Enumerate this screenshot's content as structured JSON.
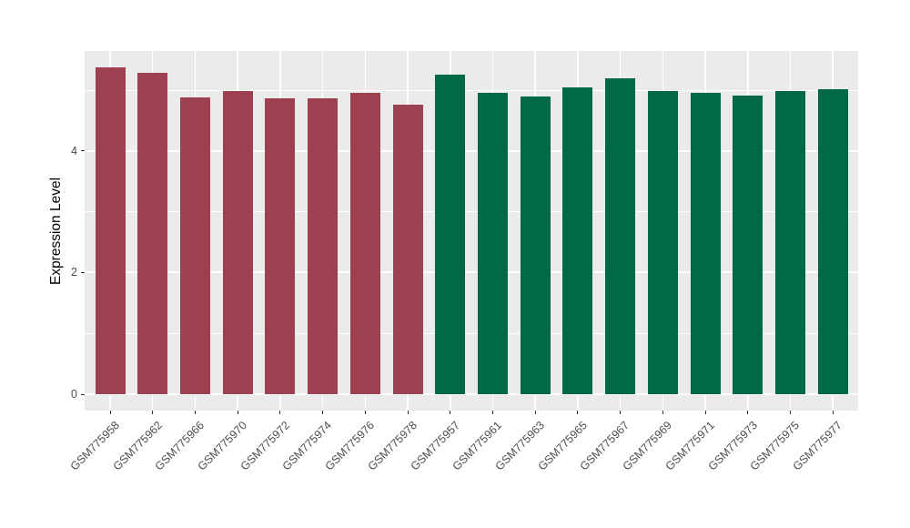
{
  "chart_data": {
    "type": "bar",
    "title": "",
    "xlabel": "",
    "ylabel": "Expression Level",
    "ylim": [
      0,
      5.65
    ],
    "yticks": [
      0,
      2,
      4
    ],
    "yticks_minor": [
      1,
      3,
      5
    ],
    "grid": "on",
    "legend": "none",
    "panel_bg": "#EBEBEB",
    "grid_color": "#FFFFFF",
    "tick_color": "#333333",
    "tick_label_color": "#4D4D4D",
    "group_colors": {
      "left_group": "#9D4050",
      "right_group": "#016848"
    },
    "categories": [
      "GSM775958",
      "GSM775962",
      "GSM775966",
      "GSM775970",
      "GSM775972",
      "GSM775974",
      "GSM775976",
      "GSM775978",
      "GSM775957",
      "GSM775961",
      "GSM775963",
      "GSM775965",
      "GSM775967",
      "GSM775969",
      "GSM775971",
      "GSM775973",
      "GSM775975",
      "GSM775977"
    ],
    "values": [
      5.37,
      5.28,
      4.88,
      4.98,
      4.86,
      4.87,
      4.95,
      4.76,
      5.25,
      4.95,
      4.9,
      5.05,
      5.19,
      4.99,
      4.95,
      4.91,
      4.98,
      5.01
    ],
    "bar_colors": [
      "#9D4050",
      "#9D4050",
      "#9D4050",
      "#9D4050",
      "#9D4050",
      "#9D4050",
      "#9D4050",
      "#9D4050",
      "#016848",
      "#016848",
      "#016848",
      "#016848",
      "#016848",
      "#016848",
      "#016848",
      "#016848",
      "#016848",
      "#016848"
    ]
  }
}
